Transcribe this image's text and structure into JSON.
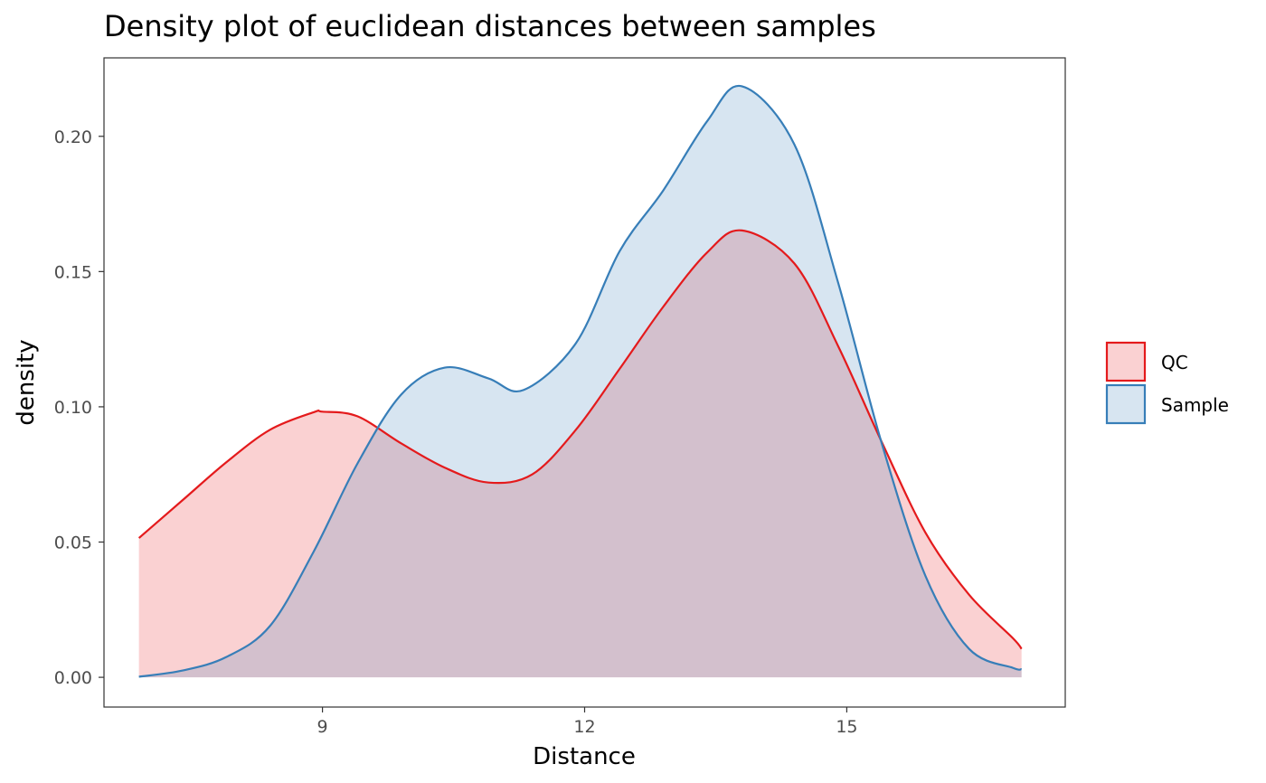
{
  "chart_data": {
    "type": "area",
    "title": "Density plot of euclidean distances between samples",
    "xlabel": "Distance",
    "ylabel": "density",
    "xlim": [
      6.5,
      17.5
    ],
    "ylim": [
      -0.011,
      0.229
    ],
    "x_ticks": [
      9,
      12,
      15
    ],
    "x_tick_labels": [
      "9",
      "12",
      "15"
    ],
    "y_ticks": [
      0,
      0.05,
      0.1,
      0.15,
      0.2
    ],
    "y_tick_labels": [
      "0.00",
      "0.05",
      "0.10",
      "0.15",
      "0.20"
    ],
    "grid": false,
    "legend_position": "right",
    "series": [
      {
        "name": "QC",
        "line_color": "#e41a1c",
        "fill_color": "#e41a1c",
        "fill_opacity": 0.2,
        "x": [
          6.9,
          7.4,
          7.9,
          8.4,
          8.9,
          9.0,
          9.4,
          9.9,
          10.4,
          10.9,
          11.4,
          11.9,
          12.4,
          12.9,
          13.4,
          13.8,
          14.4,
          14.9,
          15.4,
          15.9,
          16.4,
          16.9,
          17.0
        ],
        "values": [
          0.0515,
          0.0655,
          0.0795,
          0.0915,
          0.098,
          0.0982,
          0.0965,
          0.0865,
          0.0775,
          0.072,
          0.075,
          0.0915,
          0.114,
          0.137,
          0.157,
          0.1652,
          0.153,
          0.1225,
          0.087,
          0.0535,
          0.0305,
          0.0145,
          0.0105
        ]
      },
      {
        "name": "Sample",
        "line_color": "#377eb8",
        "fill_color": "#377eb8",
        "fill_opacity": 0.2,
        "x": [
          6.9,
          7.4,
          7.9,
          8.4,
          8.9,
          9.4,
          9.9,
          10.4,
          10.9,
          11.3,
          11.9,
          12.4,
          12.9,
          13.4,
          13.8,
          14.4,
          14.9,
          15.4,
          15.9,
          16.4,
          16.9,
          17.0
        ],
        "values": [
          0.0002,
          0.0025,
          0.0075,
          0.019,
          0.0465,
          0.079,
          0.1045,
          0.1145,
          0.1105,
          0.1062,
          0.1235,
          0.1575,
          0.18,
          0.2055,
          0.2185,
          0.197,
          0.146,
          0.0865,
          0.0375,
          0.0105,
          0.0035,
          0.003
        ]
      }
    ]
  }
}
